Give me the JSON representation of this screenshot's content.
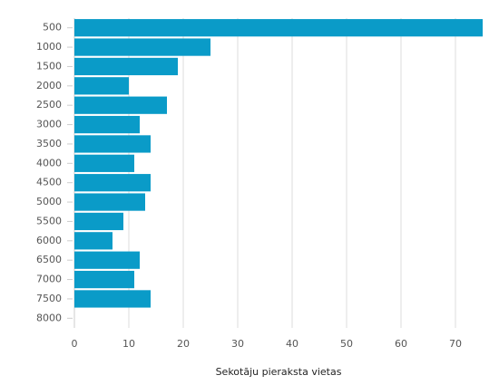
{
  "chart_data": {
    "type": "bar",
    "orientation": "horizontal",
    "x_label": "Sekotāju pieraksta vietas",
    "categories": [
      "500",
      "1000",
      "1500",
      "2000",
      "2500",
      "3000",
      "3500",
      "4000",
      "4500",
      "5000",
      "5500",
      "6000",
      "6500",
      "7000",
      "7500",
      "8000"
    ],
    "values": [
      75,
      25,
      19,
      10,
      17,
      12,
      14,
      11,
      14,
      13,
      9,
      7,
      12,
      11,
      14,
      null
    ],
    "color": "#0a9bc8",
    "xlim": [
      0,
      75
    ],
    "xticks": [
      0,
      10,
      20,
      30,
      40,
      50,
      60,
      70
    ],
    "grid": true
  }
}
